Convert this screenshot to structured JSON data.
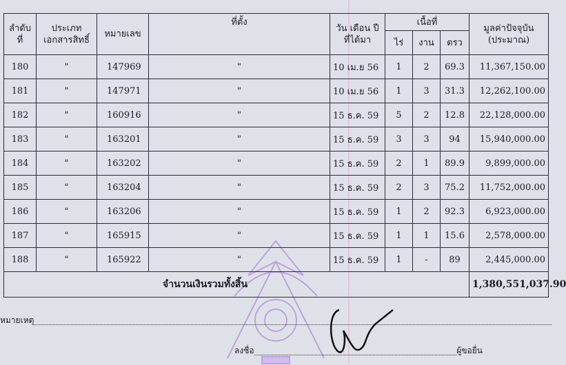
{
  "table": {
    "headers": {
      "order": "ลำดับ ที่",
      "doc_type": "ประเภท เอกสารสิทธิ์",
      "number": "หมายเลข",
      "location": "ที่ตั้ง",
      "date": "วัน เดือน ปี ที่ได้มา",
      "area": "เนื้อที่",
      "rai": "ไร่",
      "ngan": "งาน",
      "wa": "ตรว",
      "value": "มูลค่าปัจจุบัน (ประมาณ)"
    },
    "rows": [
      {
        "order": "180",
        "doc_type": "\"",
        "number": "147969",
        "location": "\"",
        "date": "10 เม.ย 56",
        "rai": "1",
        "ngan": "2",
        "wa": "69.3",
        "value": "11,367,150.00"
      },
      {
        "order": "181",
        "doc_type": "\"",
        "number": "147971",
        "location": "\"",
        "date": "10 เม.ย 56",
        "rai": "1",
        "ngan": "3",
        "wa": "31.3",
        "value": "12,262,100.00"
      },
      {
        "order": "182",
        "doc_type": "\"",
        "number": "160916",
        "location": "\"",
        "date": "15 ธ.ค. 59",
        "rai": "5",
        "ngan": "2",
        "wa": "12.8",
        "value": "22,128,000.00"
      },
      {
        "order": "183",
        "doc_type": "\"",
        "number": "163201",
        "location": "\"",
        "date": "15 ธ.ค. 59",
        "rai": "3",
        "ngan": "3",
        "wa": "94",
        "value": "15,940,000.00"
      },
      {
        "order": "184",
        "doc_type": "\"",
        "number": "163202",
        "location": "\"",
        "date": "15 ธ.ค. 59",
        "rai": "2",
        "ngan": "1",
        "wa": "89.9",
        "value": "9,899,000.00"
      },
      {
        "order": "185",
        "doc_type": "\"",
        "number": "163204",
        "location": "\"",
        "date": "15 ธ.ค. 59",
        "rai": "2",
        "ngan": "3",
        "wa": "75.2",
        "value": "11,752,000.00"
      },
      {
        "order": "186",
        "doc_type": "\"",
        "number": "163206",
        "location": "\"",
        "date": "15 ธ.ค. 59",
        "rai": "1",
        "ngan": "2",
        "wa": "92.3",
        "value": "6,923,000.00"
      },
      {
        "order": "187",
        "doc_type": "\"",
        "number": "165915",
        "location": "\"",
        "date": "15 ธ.ค. 59",
        "rai": "1",
        "ngan": "1",
        "wa": "15.6",
        "value": "2,578,000.00"
      },
      {
        "order": "188",
        "doc_type": "\"",
        "number": "165922",
        "location": "\"",
        "date": "15 ธ.ค. 59",
        "rai": "1",
        "ngan": "-",
        "wa": "89",
        "value": "2,445,000.00"
      }
    ],
    "total_label": "จำนวนเงินรวมทั้งสิ้น",
    "total_value": "1,380,551,037.90"
  },
  "footer": {
    "remark_label": "หมายเหตุ",
    "sign_label": "ลงชื่อ",
    "signer_role": "ผู้ขอยื่น"
  },
  "colors": {
    "seal": "#a070d8",
    "ink": "#1a1a2a",
    "paper": "#dfe1e8"
  }
}
